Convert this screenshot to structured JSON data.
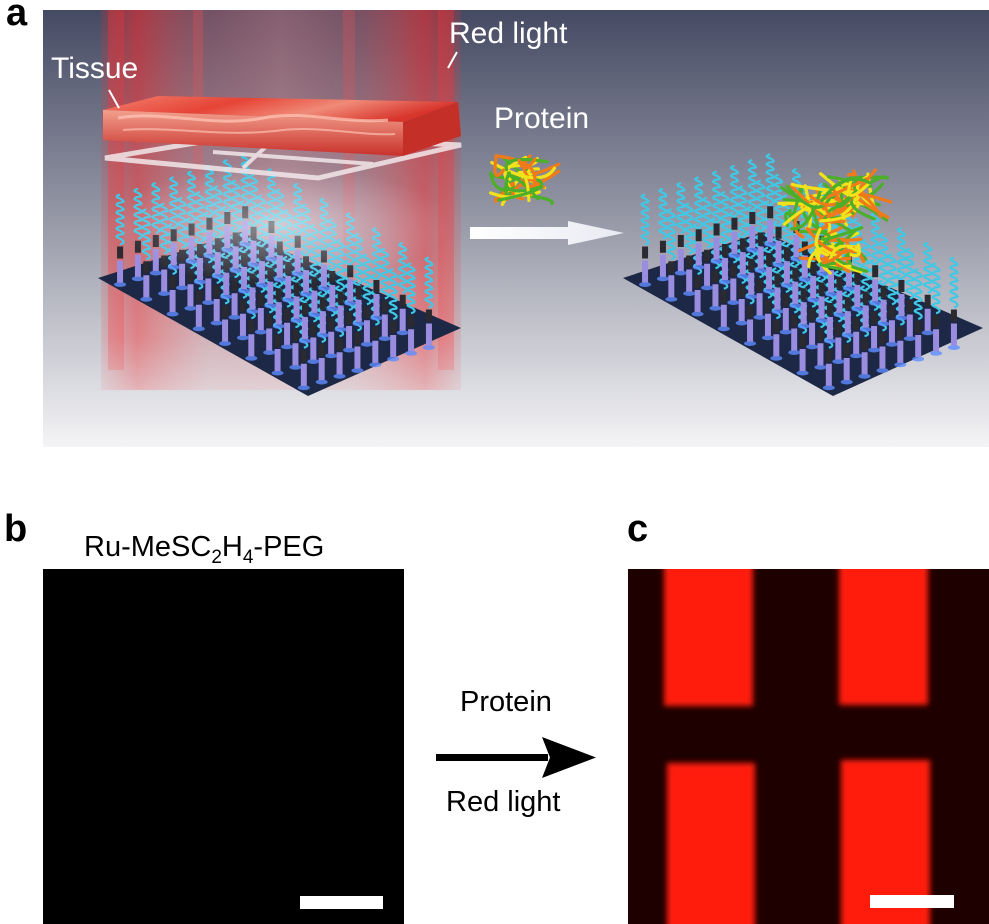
{
  "figure": {
    "panel_a": {
      "letter": "a",
      "labels": {
        "tissue": "Tissue",
        "red_light": "Red light",
        "protein": "Protein"
      }
    },
    "panel_b": {
      "letter": "b",
      "title_parts": {
        "prefix": "Ru-MeSC",
        "sub1": "2",
        "mid": "H",
        "sub2": "4",
        "suffix": "-PEG"
      }
    },
    "panel_c": {
      "letter": "c"
    },
    "arrow_labels": {
      "top": "Protein",
      "bottom": "Red light"
    }
  },
  "colors": {
    "background_top": "#454a63",
    "background_bottom": "#f4f4f6",
    "red_light": "#ff2a2a",
    "tissue": "#e8453c",
    "substrate": "#1c2846",
    "helix": "#3fc9e6",
    "linker": "#9a8de0",
    "protein_green": "#4caf2a",
    "protein_orange": "#f07a1a",
    "protein_yellow": "#f2e21a",
    "fluorescence_red": "#ff1a10",
    "fluorescence_dark": "#200000"
  }
}
